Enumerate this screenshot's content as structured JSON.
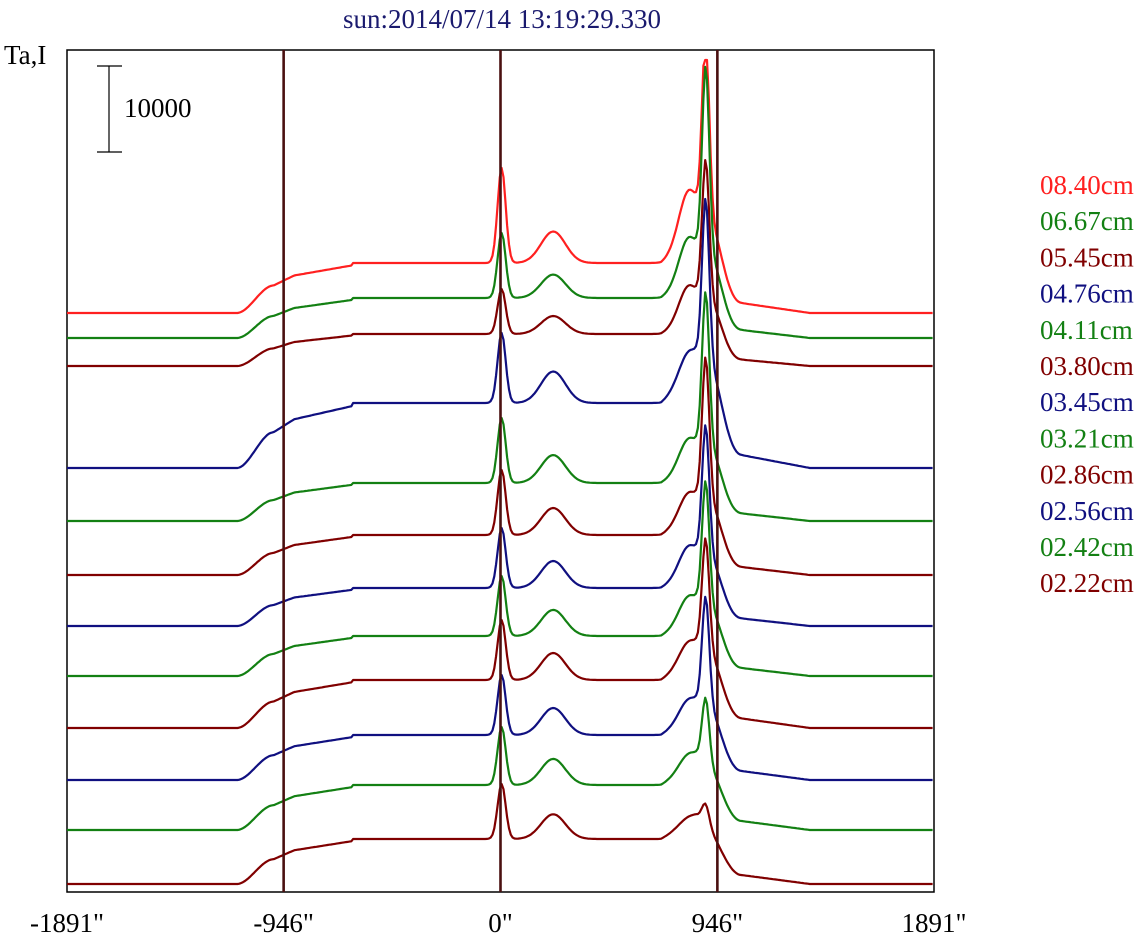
{
  "chart_data": {
    "type": "line",
    "title": "sun:2014/07/14 13:19:29.330",
    "ylabel": "Ta,I",
    "xlabel": "",
    "scale_bar_label": "10000",
    "scale_bar_value": 10000,
    "x_range": [
      -1891,
      1891
    ],
    "x_ticks": [
      {
        "value": -1891,
        "label": "-1891\""
      },
      {
        "value": -946,
        "label": "-946\""
      },
      {
        "value": 0,
        "label": "0\""
      },
      {
        "value": 946,
        "label": "946\""
      },
      {
        "value": 1891,
        "label": "1891\""
      }
    ],
    "reference_lines": [
      -946,
      0,
      946
    ],
    "series": [
      {
        "name": "08.40cm",
        "color": "#ff2020",
        "base": 313,
        "plateau": 50,
        "p0": 95,
        "pmid": 70,
        "limb": 150,
        "peak": 232
      },
      {
        "name": "06.67cm",
        "color": "#138013",
        "base": 338,
        "plateau": 40,
        "p0": 65,
        "pmid": 52,
        "limb": 125,
        "peak": 230
      },
      {
        "name": "05.45cm",
        "color": "#800000",
        "base": 366,
        "plateau": 32,
        "p0": 45,
        "pmid": 40,
        "limb": 100,
        "peak": 174
      },
      {
        "name": "04.76cm",
        "color": "#101080",
        "base": 468,
        "plateau": 65,
        "p0": 70,
        "pmid": 70,
        "limb": 100,
        "peak": 228
      },
      {
        "name": "04.11cm",
        "color": "#138013",
        "base": 521,
        "plateau": 38,
        "p0": 65,
        "pmid": 62,
        "limb": 90,
        "peak": 195
      },
      {
        "name": "03.80cm",
        "color": "#800000",
        "base": 575,
        "plateau": 40,
        "p0": 65,
        "pmid": 60,
        "limb": 85,
        "peak": 185
      },
      {
        "name": "03.45cm",
        "color": "#101080",
        "base": 626,
        "plateau": 38,
        "p0": 60,
        "pmid": 60,
        "limb": 85,
        "peak": 170
      },
      {
        "name": "03.21cm",
        "color": "#138013",
        "base": 676,
        "plateau": 40,
        "p0": 60,
        "pmid": 58,
        "limb": 80,
        "peak": 165
      },
      {
        "name": "02.86cm",
        "color": "#800000",
        "base": 728,
        "plateau": 48,
        "p0": 60,
        "pmid": 60,
        "limb": 75,
        "peak": 160
      },
      {
        "name": "02.56cm",
        "color": "#101080",
        "base": 780,
        "plateau": 45,
        "p0": 60,
        "pmid": 60,
        "limb": 70,
        "peak": 155
      },
      {
        "name": "02.42cm",
        "color": "#138013",
        "base": 830,
        "plateau": 45,
        "p0": 58,
        "pmid": 58,
        "limb": 60,
        "peak": 110
      },
      {
        "name": "02.22cm",
        "color": "#800000",
        "base": 884,
        "plateau": 45,
        "p0": 55,
        "pmid": 55,
        "limb": 40,
        "peak": 65
      }
    ]
  }
}
